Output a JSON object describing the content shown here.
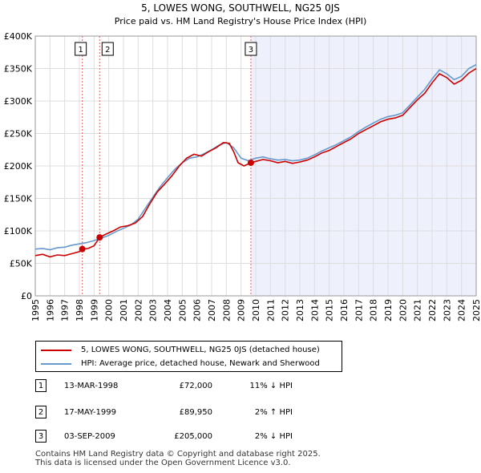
{
  "chart_data": {
    "type": "line",
    "title": "5, LOWES WONG, SOUTHWELL, NG25 0JS",
    "subtitle": "Price paid vs. HM Land Registry's House Price Index (HPI)",
    "xlim": [
      1995,
      2025
    ],
    "ylim": [
      0,
      400000
    ],
    "x_ticks": [
      "1995",
      "1996",
      "1997",
      "1998",
      "1999",
      "2000",
      "2001",
      "2002",
      "2003",
      "2004",
      "2005",
      "2006",
      "2007",
      "2008",
      "2009",
      "2010",
      "2011",
      "2012",
      "2013",
      "2014",
      "2015",
      "2016",
      "2017",
      "2018",
      "2019",
      "2020",
      "2021",
      "2022",
      "2023",
      "2024",
      "2025"
    ],
    "y_ticks": [
      {
        "value": 0,
        "label": "£0"
      },
      {
        "value": 50000,
        "label": "£50K"
      },
      {
        "value": 100000,
        "label": "£100K"
      },
      {
        "value": 150000,
        "label": "£150K"
      },
      {
        "value": 200000,
        "label": "£200K"
      },
      {
        "value": 250000,
        "label": "£250K"
      },
      {
        "value": 300000,
        "label": "£300K"
      },
      {
        "value": 350000,
        "label": "£350K"
      },
      {
        "value": 400000,
        "label": "£400K"
      }
    ],
    "shaded_range": [
      2009.67,
      2025.0
    ],
    "series": [
      {
        "name": "5, LOWES WONG, SOUTHWELL, NG25 0JS (detached house)",
        "color": "#cc0000",
        "points": [
          [
            1995.0,
            62000
          ],
          [
            1995.5,
            64000
          ],
          [
            1996.0,
            60000
          ],
          [
            1996.5,
            63000
          ],
          [
            1997.0,
            62000
          ],
          [
            1997.5,
            65000
          ],
          [
            1998.0,
            68000
          ],
          [
            1998.2,
            72000
          ],
          [
            1998.6,
            73000
          ],
          [
            1999.0,
            77000
          ],
          [
            1999.38,
            89950
          ],
          [
            1999.8,
            95000
          ],
          [
            2000.3,
            100000
          ],
          [
            2000.8,
            106000
          ],
          [
            2001.3,
            108000
          ],
          [
            2001.8,
            112000
          ],
          [
            2002.3,
            122000
          ],
          [
            2002.8,
            142000
          ],
          [
            2003.3,
            160000
          ],
          [
            2003.8,
            172000
          ],
          [
            2004.3,
            185000
          ],
          [
            2004.8,
            200000
          ],
          [
            2005.3,
            212000
          ],
          [
            2005.8,
            218000
          ],
          [
            2006.3,
            215000
          ],
          [
            2006.8,
            222000
          ],
          [
            2007.3,
            228000
          ],
          [
            2007.8,
            236000
          ],
          [
            2008.2,
            235000
          ],
          [
            2008.5,
            222000
          ],
          [
            2008.8,
            205000
          ],
          [
            2009.2,
            200000
          ],
          [
            2009.67,
            205000
          ],
          [
            2010.0,
            207000
          ],
          [
            2010.5,
            210000
          ],
          [
            2011.0,
            208000
          ],
          [
            2011.5,
            205000
          ],
          [
            2012.0,
            207000
          ],
          [
            2012.5,
            204000
          ],
          [
            2013.0,
            206000
          ],
          [
            2013.5,
            209000
          ],
          [
            2014.0,
            214000
          ],
          [
            2014.5,
            220000
          ],
          [
            2015.0,
            224000
          ],
          [
            2015.5,
            230000
          ],
          [
            2016.0,
            236000
          ],
          [
            2016.5,
            242000
          ],
          [
            2017.0,
            250000
          ],
          [
            2017.5,
            256000
          ],
          [
            2018.0,
            262000
          ],
          [
            2018.5,
            268000
          ],
          [
            2019.0,
            272000
          ],
          [
            2019.5,
            274000
          ],
          [
            2020.0,
            278000
          ],
          [
            2020.5,
            290000
          ],
          [
            2021.0,
            302000
          ],
          [
            2021.5,
            312000
          ],
          [
            2022.0,
            328000
          ],
          [
            2022.5,
            342000
          ],
          [
            2023.0,
            336000
          ],
          [
            2023.5,
            326000
          ],
          [
            2024.0,
            332000
          ],
          [
            2024.5,
            343000
          ],
          [
            2025.0,
            350000
          ]
        ]
      },
      {
        "name": "HPI: Average price, detached house, Newark and Sherwood",
        "color": "#6699cc",
        "points": [
          [
            1995.0,
            72000
          ],
          [
            1995.5,
            73000
          ],
          [
            1996.0,
            71000
          ],
          [
            1996.5,
            74000
          ],
          [
            1997.0,
            75000
          ],
          [
            1997.5,
            78000
          ],
          [
            1998.0,
            80000
          ],
          [
            1998.5,
            82000
          ],
          [
            1999.0,
            85000
          ],
          [
            1999.5,
            89000
          ],
          [
            2000.0,
            93000
          ],
          [
            2000.5,
            99000
          ],
          [
            2001.0,
            104000
          ],
          [
            2001.5,
            109000
          ],
          [
            2002.0,
            118000
          ],
          [
            2002.5,
            135000
          ],
          [
            2003.0,
            152000
          ],
          [
            2003.5,
            168000
          ],
          [
            2004.0,
            182000
          ],
          [
            2004.5,
            195000
          ],
          [
            2005.0,
            205000
          ],
          [
            2005.5,
            212000
          ],
          [
            2006.0,
            214000
          ],
          [
            2006.5,
            219000
          ],
          [
            2007.0,
            225000
          ],
          [
            2007.5,
            232000
          ],
          [
            2008.0,
            236000
          ],
          [
            2008.5,
            228000
          ],
          [
            2009.0,
            212000
          ],
          [
            2009.5,
            208000
          ],
          [
            2010.0,
            212000
          ],
          [
            2010.5,
            214000
          ],
          [
            2011.0,
            211000
          ],
          [
            2011.5,
            209000
          ],
          [
            2012.0,
            210000
          ],
          [
            2012.5,
            208000
          ],
          [
            2013.0,
            209000
          ],
          [
            2013.5,
            212000
          ],
          [
            2014.0,
            217000
          ],
          [
            2014.5,
            223000
          ],
          [
            2015.0,
            228000
          ],
          [
            2015.5,
            233000
          ],
          [
            2016.0,
            239000
          ],
          [
            2016.5,
            245000
          ],
          [
            2017.0,
            253000
          ],
          [
            2017.5,
            260000
          ],
          [
            2018.0,
            266000
          ],
          [
            2018.5,
            272000
          ],
          [
            2019.0,
            276000
          ],
          [
            2019.5,
            278000
          ],
          [
            2020.0,
            282000
          ],
          [
            2020.5,
            294000
          ],
          [
            2021.0,
            306000
          ],
          [
            2021.5,
            318000
          ],
          [
            2022.0,
            334000
          ],
          [
            2022.5,
            348000
          ],
          [
            2023.0,
            342000
          ],
          [
            2023.5,
            333000
          ],
          [
            2024.0,
            338000
          ],
          [
            2024.5,
            350000
          ],
          [
            2025.0,
            356000
          ]
        ]
      }
    ],
    "sales": [
      {
        "num": "1",
        "x": 1998.2,
        "price": 72000
      },
      {
        "num": "2",
        "x": 1999.38,
        "price": 89950
      },
      {
        "num": "3",
        "x": 2009.67,
        "price": 205000
      }
    ]
  },
  "legend": {
    "property_label": "5, LOWES WONG, SOUTHWELL, NG25 0JS (detached house)",
    "hpi_label": "HPI: Average price, detached house, Newark and Sherwood",
    "property_color": "#cc0000",
    "hpi_color": "#6699cc"
  },
  "transactions": [
    {
      "num": "1",
      "date": "13-MAR-1998",
      "price": "£72,000",
      "hpi": "11% ↓ HPI"
    },
    {
      "num": "2",
      "date": "17-MAY-1999",
      "price": "£89,950",
      "hpi": "2% ↑ HPI"
    },
    {
      "num": "3",
      "date": "03-SEP-2009",
      "price": "£205,000",
      "hpi": "2% ↓ HPI"
    }
  ],
  "footer": {
    "line1": "Contains HM Land Registry data © Copyright and database right 2025.",
    "line2": "This data is licensed under the Open Government Licence v3.0."
  }
}
